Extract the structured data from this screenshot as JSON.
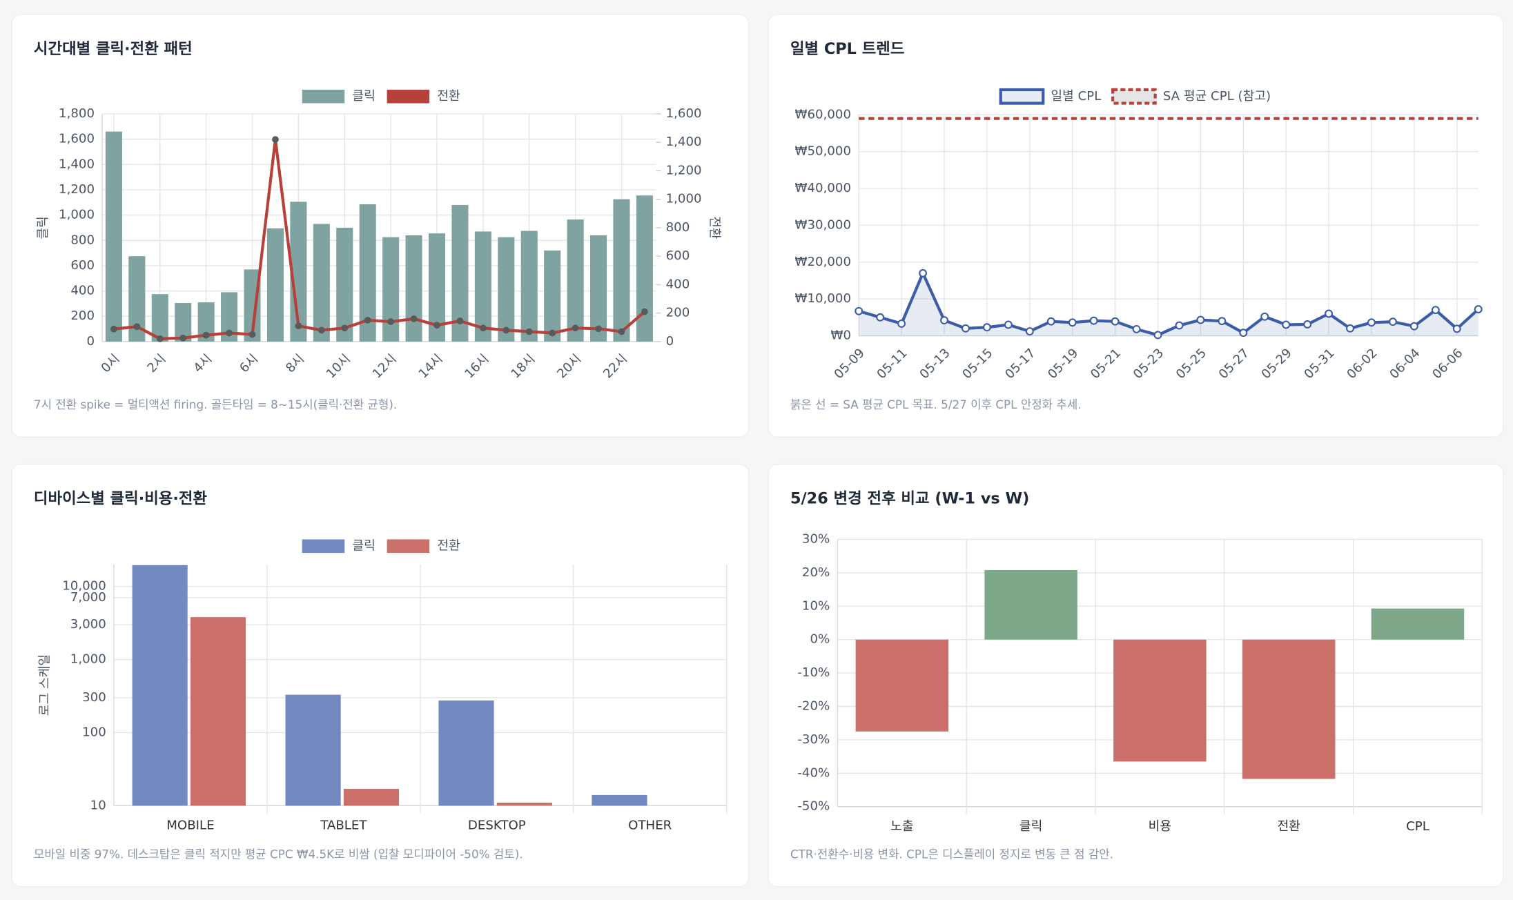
{
  "chart_data": [
    {
      "type": "bar_line",
      "title": "시간대별 클릭·전환 패턴",
      "categories": [
        "0시",
        null,
        "2시",
        null,
        "4시",
        null,
        "6시",
        null,
        "8시",
        null,
        "10시",
        null,
        "12시",
        null,
        "14시",
        null,
        "16시",
        null,
        "18시",
        null,
        "20시",
        null,
        "22시",
        null
      ],
      "series": [
        {
          "name": "클릭",
          "type": "bar",
          "color": "#7fa3a0",
          "values": [
            1660,
            675,
            375,
            305,
            310,
            390,
            570,
            895,
            1105,
            930,
            900,
            1085,
            825,
            840,
            855,
            1080,
            870,
            825,
            875,
            720,
            965,
            840,
            1125,
            1155
          ]
        },
        {
          "name": "전환",
          "type": "line",
          "axis": "y2",
          "color": "#b8403a",
          "marker_color": "#5a5a5a",
          "values": [
            88,
            105,
            20,
            25,
            45,
            60,
            50,
            1420,
            110,
            80,
            95,
            150,
            140,
            160,
            115,
            145,
            95,
            80,
            70,
            60,
            95,
            90,
            70,
            210
          ]
        }
      ],
      "ylabel": "클릭",
      "y2label": "전환",
      "ylim": [
        0,
        1800
      ],
      "yticks": [
        0,
        200,
        400,
        600,
        800,
        {
          "value": 1000,
          "label": "1,000"
        },
        {
          "value": 1200,
          "label": "1,200"
        },
        {
          "value": 1400,
          "label": "1,400"
        },
        {
          "value": 1600,
          "label": "1,600"
        },
        {
          "value": 1800,
          "label": "1,800"
        }
      ],
      "y2lim": [
        0,
        1600
      ],
      "y2ticks": [
        0,
        200,
        400,
        600,
        800,
        {
          "value": 1000,
          "label": "1,000"
        },
        {
          "value": 1200,
          "label": "1,200"
        },
        {
          "value": 1400,
          "label": "1,400"
        },
        {
          "value": 1600,
          "label": "1,600"
        }
      ],
      "grid": true,
      "note": "7시 전환 spike = 멀티액션 firing. 골든타임 = 8~15시(클릭·전환 균형)."
    },
    {
      "type": "line",
      "title": "일별 CPL 트렌드",
      "categories": [
        "05-09",
        null,
        "05-11",
        null,
        "05-13",
        null,
        "05-15",
        null,
        "05-17",
        null,
        "05-19",
        null,
        "05-21",
        null,
        "05-23",
        null,
        "05-25",
        null,
        "05-27",
        null,
        "05-29",
        null,
        "05-31",
        null,
        "06-02",
        null,
        "06-04",
        null,
        "06-06",
        null
      ],
      "series": [
        {
          "name": "일별 CPL",
          "color": "#3b5ca8",
          "fill": "rgba(59,92,168,0.12)",
          "values": [
            6700,
            5000,
            3300,
            17000,
            4200,
            2000,
            2300,
            3000,
            1200,
            3900,
            3600,
            4100,
            3900,
            1800,
            200,
            2800,
            4300,
            4000,
            800,
            5200,
            3000,
            3100,
            6000,
            2000,
            3600,
            3800,
            2600,
            7000,
            1900,
            7200
          ]
        },
        {
          "name": "SA 평균 CPL (참고)",
          "color": "#b8403a",
          "dashed": true,
          "values": [
            59000,
            59000,
            59000,
            59000,
            59000,
            59000,
            59000,
            59000,
            59000,
            59000,
            59000,
            59000,
            59000,
            59000,
            59000,
            59000,
            59000,
            59000,
            59000,
            59000,
            59000,
            59000,
            59000,
            59000,
            59000,
            59000,
            59000,
            59000,
            59000,
            59000
          ]
        }
      ],
      "ylim": [
        0,
        60000
      ],
      "yticks": [
        {
          "value": 0,
          "label": "₩0"
        },
        {
          "value": 10000,
          "label": "₩10,000"
        },
        {
          "value": 20000,
          "label": "₩20,000"
        },
        {
          "value": 30000,
          "label": "₩30,000"
        },
        {
          "value": 40000,
          "label": "₩40,000"
        },
        {
          "value": 50000,
          "label": "₩50,000"
        },
        {
          "value": 60000,
          "label": "₩60,000"
        }
      ],
      "grid": true,
      "note": "붉은 선 = SA 평균 CPL 목표. 5/27 이후 CPL 안정화 추세."
    },
    {
      "type": "bar",
      "title": "디바이스별 클릭·비용·전환",
      "log_scale": true,
      "categories": [
        "MOBILE",
        "TABLET",
        "DESKTOP",
        "OTHER"
      ],
      "series": [
        {
          "name": "클릭",
          "color": "#7189c0",
          "values": [
            19600,
            330,
            275,
            14
          ]
        },
        {
          "name": "전환",
          "color": "#cc6f69",
          "values": [
            3800,
            17,
            11,
            null
          ]
        }
      ],
      "ylabel": "로그 스케일",
      "ylim": [
        10,
        20000
      ],
      "yticks": [
        10,
        100,
        300,
        {
          "value": 1000,
          "label": "1,000"
        },
        {
          "value": 3000,
          "label": "3,000"
        },
        {
          "value": 7000,
          "label": "7,000"
        },
        {
          "value": 10000,
          "label": "10,000"
        }
      ],
      "grid": true,
      "note": "모바일 비중 97%. 데스크탑은 클릭 적지만 평균 CPC ₩4.5K로 비쌈 (입찰 모디파이어 -50% 검토)."
    },
    {
      "type": "bar",
      "title": "5/26 변경 전후 비교 (W-1 vs W)",
      "categories": [
        "노출",
        "클릭",
        "비용",
        "전환",
        "CPL"
      ],
      "values": [
        -27.5,
        20.8,
        -36.5,
        -41.7,
        9.3
      ],
      "positive_color": "#7ea88a",
      "negative_color": "#cc6f69",
      "ylim": [
        -50,
        30
      ],
      "yticks": [
        {
          "value": -50,
          "label": "-50%"
        },
        {
          "value": -40,
          "label": "-40%"
        },
        {
          "value": -30,
          "label": "-30%"
        },
        {
          "value": -20,
          "label": "-20%"
        },
        {
          "value": -10,
          "label": "-10%"
        },
        {
          "value": 0,
          "label": "0%"
        },
        {
          "value": 10,
          "label": "10%"
        },
        {
          "value": 20,
          "label": "20%"
        },
        {
          "value": 30,
          "label": "30%"
        }
      ],
      "grid": true,
      "note": "CTR·전환수·비용 변화. CPL은 디스플레이 정지로 변동 큰 점 감안."
    }
  ]
}
